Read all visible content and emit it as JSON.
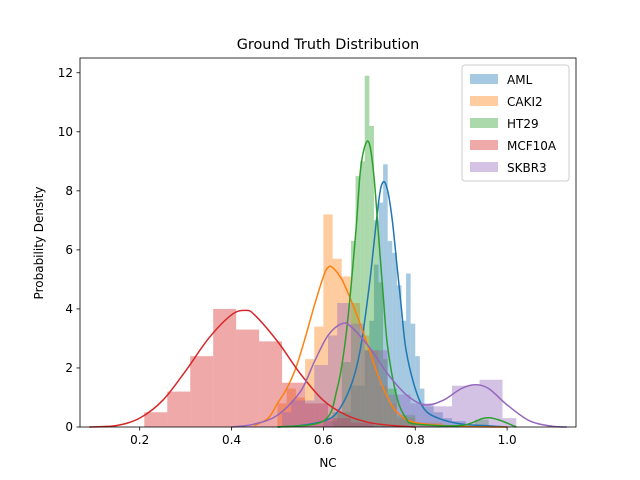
{
  "chart_data": {
    "type": "histogram+kde",
    "title": "Ground Truth Distribution",
    "xlabel": "NC",
    "ylabel": "Probability Density",
    "xlim": [
      0.07,
      1.15
    ],
    "ylim": [
      0,
      12.5
    ],
    "xticks": [
      0.2,
      0.4,
      0.6,
      0.8,
      1.0
    ],
    "xtick_labels": [
      "0.2",
      "0.4",
      "0.6",
      "0.8",
      "1.0"
    ],
    "yticks": [
      0,
      2,
      4,
      6,
      8,
      10,
      12
    ],
    "ytick_labels": [
      "0",
      "2",
      "4",
      "6",
      "8",
      "10",
      "12"
    ],
    "grid": false,
    "legend_position": "top-right",
    "series": [
      {
        "name": "AML",
        "color": "#1f77b4",
        "hist": [
          [
            0.6,
            0.63,
            0.2
          ],
          [
            0.63,
            0.66,
            0.5
          ],
          [
            0.66,
            0.69,
            1.4
          ],
          [
            0.69,
            0.7,
            2.6
          ],
          [
            0.7,
            0.71,
            3.6
          ],
          [
            0.71,
            0.72,
            5.5
          ],
          [
            0.72,
            0.73,
            7.6
          ],
          [
            0.73,
            0.74,
            8.9
          ],
          [
            0.74,
            0.75,
            6.3
          ],
          [
            0.75,
            0.76,
            5.9
          ],
          [
            0.76,
            0.77,
            4.8
          ],
          [
            0.77,
            0.78,
            3.6
          ],
          [
            0.78,
            0.79,
            5.2
          ],
          [
            0.79,
            0.8,
            3.5
          ],
          [
            0.8,
            0.81,
            2.4
          ],
          [
            0.81,
            0.82,
            1.3
          ],
          [
            0.82,
            0.84,
            0.7
          ],
          [
            0.84,
            0.86,
            0.5
          ],
          [
            0.86,
            0.88,
            0.3
          ],
          [
            0.88,
            0.91,
            0.2
          ]
        ],
        "kde": [
          [
            0.5,
            0.0
          ],
          [
            0.55,
            0.05
          ],
          [
            0.6,
            0.2
          ],
          [
            0.63,
            0.5
          ],
          [
            0.66,
            1.4
          ],
          [
            0.68,
            2.6
          ],
          [
            0.7,
            4.8
          ],
          [
            0.72,
            7.6
          ],
          [
            0.73,
            8.3
          ],
          [
            0.74,
            8.0
          ],
          [
            0.75,
            7.0
          ],
          [
            0.76,
            5.5
          ],
          [
            0.77,
            4.0
          ],
          [
            0.78,
            2.6
          ],
          [
            0.8,
            1.3
          ],
          [
            0.82,
            0.6
          ],
          [
            0.85,
            0.3
          ],
          [
            0.9,
            0.1
          ],
          [
            0.95,
            0.05
          ],
          [
            1.0,
            0.0
          ]
        ]
      },
      {
        "name": "CAKI2",
        "color": "#ff7f0e",
        "hist": [
          [
            0.5,
            0.52,
            0.8
          ],
          [
            0.52,
            0.54,
            1.3
          ],
          [
            0.54,
            0.56,
            1.0
          ],
          [
            0.56,
            0.58,
            2.3
          ],
          [
            0.58,
            0.6,
            3.4
          ],
          [
            0.6,
            0.62,
            7.2
          ],
          [
            0.62,
            0.64,
            5.7
          ],
          [
            0.64,
            0.66,
            5.1
          ],
          [
            0.66,
            0.68,
            4.2
          ],
          [
            0.68,
            0.7,
            3.1
          ],
          [
            0.7,
            0.72,
            2.6
          ],
          [
            0.72,
            0.74,
            1.4
          ],
          [
            0.74,
            0.76,
            0.8
          ],
          [
            0.76,
            0.8,
            0.3
          ],
          [
            0.8,
            0.86,
            0.15
          ]
        ],
        "kde": [
          [
            0.45,
            0.05
          ],
          [
            0.48,
            0.3
          ],
          [
            0.5,
            0.8
          ],
          [
            0.52,
            1.3
          ],
          [
            0.54,
            2.0
          ],
          [
            0.56,
            3.0
          ],
          [
            0.58,
            4.1
          ],
          [
            0.6,
            5.1
          ],
          [
            0.61,
            5.4
          ],
          [
            0.62,
            5.4
          ],
          [
            0.64,
            5.0
          ],
          [
            0.66,
            4.3
          ],
          [
            0.68,
            3.5
          ],
          [
            0.7,
            2.6
          ],
          [
            0.72,
            1.7
          ],
          [
            0.74,
            1.0
          ],
          [
            0.76,
            0.5
          ],
          [
            0.8,
            0.15
          ],
          [
            0.9,
            0.02
          ],
          [
            1.0,
            0.0
          ]
        ]
      },
      {
        "name": "HT29",
        "color": "#2ca02c",
        "hist": [
          [
            0.62,
            0.64,
            0.5
          ],
          [
            0.64,
            0.66,
            2.2
          ],
          [
            0.66,
            0.67,
            6.3
          ],
          [
            0.67,
            0.68,
            8.5
          ],
          [
            0.68,
            0.69,
            9.0
          ],
          [
            0.69,
            0.7,
            11.9
          ],
          [
            0.7,
            0.71,
            10.2
          ],
          [
            0.71,
            0.72,
            7.0
          ],
          [
            0.72,
            0.73,
            4.9
          ],
          [
            0.73,
            0.74,
            2.3
          ],
          [
            0.74,
            0.76,
            1.3
          ],
          [
            0.76,
            0.8,
            0.4
          ],
          [
            0.93,
            0.96,
            0.25
          ]
        ],
        "kde": [
          [
            0.5,
            0.0
          ],
          [
            0.6,
            0.2
          ],
          [
            0.63,
            1.3
          ],
          [
            0.65,
            3.2
          ],
          [
            0.67,
            6.5
          ],
          [
            0.68,
            8.6
          ],
          [
            0.69,
            9.5
          ],
          [
            0.7,
            9.6
          ],
          [
            0.71,
            8.5
          ],
          [
            0.72,
            6.5
          ],
          [
            0.73,
            4.5
          ],
          [
            0.74,
            2.7
          ],
          [
            0.76,
            1.0
          ],
          [
            0.78,
            0.3
          ],
          [
            0.8,
            0.1
          ],
          [
            0.9,
            0.05
          ],
          [
            0.95,
            0.3
          ],
          [
            0.98,
            0.25
          ],
          [
            1.02,
            0.0
          ]
        ]
      },
      {
        "name": "MCF10A",
        "color": "#d62728",
        "hist": [
          [
            0.21,
            0.26,
            0.5
          ],
          [
            0.26,
            0.31,
            1.2
          ],
          [
            0.31,
            0.36,
            2.4
          ],
          [
            0.36,
            0.41,
            4.0
          ],
          [
            0.41,
            0.46,
            3.3
          ],
          [
            0.46,
            0.51,
            2.9
          ],
          [
            0.51,
            0.56,
            1.5
          ],
          [
            0.56,
            0.61,
            0.8
          ],
          [
            0.61,
            0.66,
            0.3
          ],
          [
            0.66,
            0.71,
            0.15
          ]
        ],
        "kde": [
          [
            0.09,
            0.0
          ],
          [
            0.15,
            0.05
          ],
          [
            0.2,
            0.3
          ],
          [
            0.25,
            0.9
          ],
          [
            0.3,
            1.9
          ],
          [
            0.35,
            3.0
          ],
          [
            0.4,
            3.8
          ],
          [
            0.43,
            3.95
          ],
          [
            0.45,
            3.8
          ],
          [
            0.5,
            2.9
          ],
          [
            0.55,
            1.8
          ],
          [
            0.6,
            0.9
          ],
          [
            0.65,
            0.4
          ],
          [
            0.7,
            0.15
          ],
          [
            0.75,
            0.05
          ],
          [
            0.8,
            0.0
          ]
        ]
      },
      {
        "name": "SKBR3",
        "color": "#9467bd",
        "hist": [
          [
            0.51,
            0.53,
            0.5
          ],
          [
            0.53,
            0.58,
            0.9
          ],
          [
            0.58,
            0.61,
            2.1
          ],
          [
            0.61,
            0.63,
            3.1
          ],
          [
            0.63,
            0.66,
            4.2
          ],
          [
            0.66,
            0.69,
            3.5
          ],
          [
            0.69,
            0.74,
            2.6
          ],
          [
            0.74,
            0.79,
            1.1
          ],
          [
            0.79,
            0.84,
            0.8
          ],
          [
            0.84,
            0.88,
            0.7
          ],
          [
            0.88,
            0.94,
            1.4
          ],
          [
            0.94,
            0.99,
            1.6
          ],
          [
            0.99,
            1.02,
            0.3
          ]
        ],
        "kde": [
          [
            0.4,
            0.0
          ],
          [
            0.45,
            0.1
          ],
          [
            0.5,
            0.4
          ],
          [
            0.55,
            1.2
          ],
          [
            0.58,
            2.2
          ],
          [
            0.61,
            3.1
          ],
          [
            0.64,
            3.5
          ],
          [
            0.66,
            3.4
          ],
          [
            0.7,
            2.7
          ],
          [
            0.74,
            1.8
          ],
          [
            0.78,
            1.1
          ],
          [
            0.82,
            0.75
          ],
          [
            0.86,
            0.9
          ],
          [
            0.9,
            1.3
          ],
          [
            0.93,
            1.43
          ],
          [
            0.96,
            1.3
          ],
          [
            1.0,
            0.75
          ],
          [
            1.05,
            0.2
          ],
          [
            1.1,
            0.02
          ],
          [
            1.13,
            0.0
          ]
        ]
      }
    ]
  }
}
